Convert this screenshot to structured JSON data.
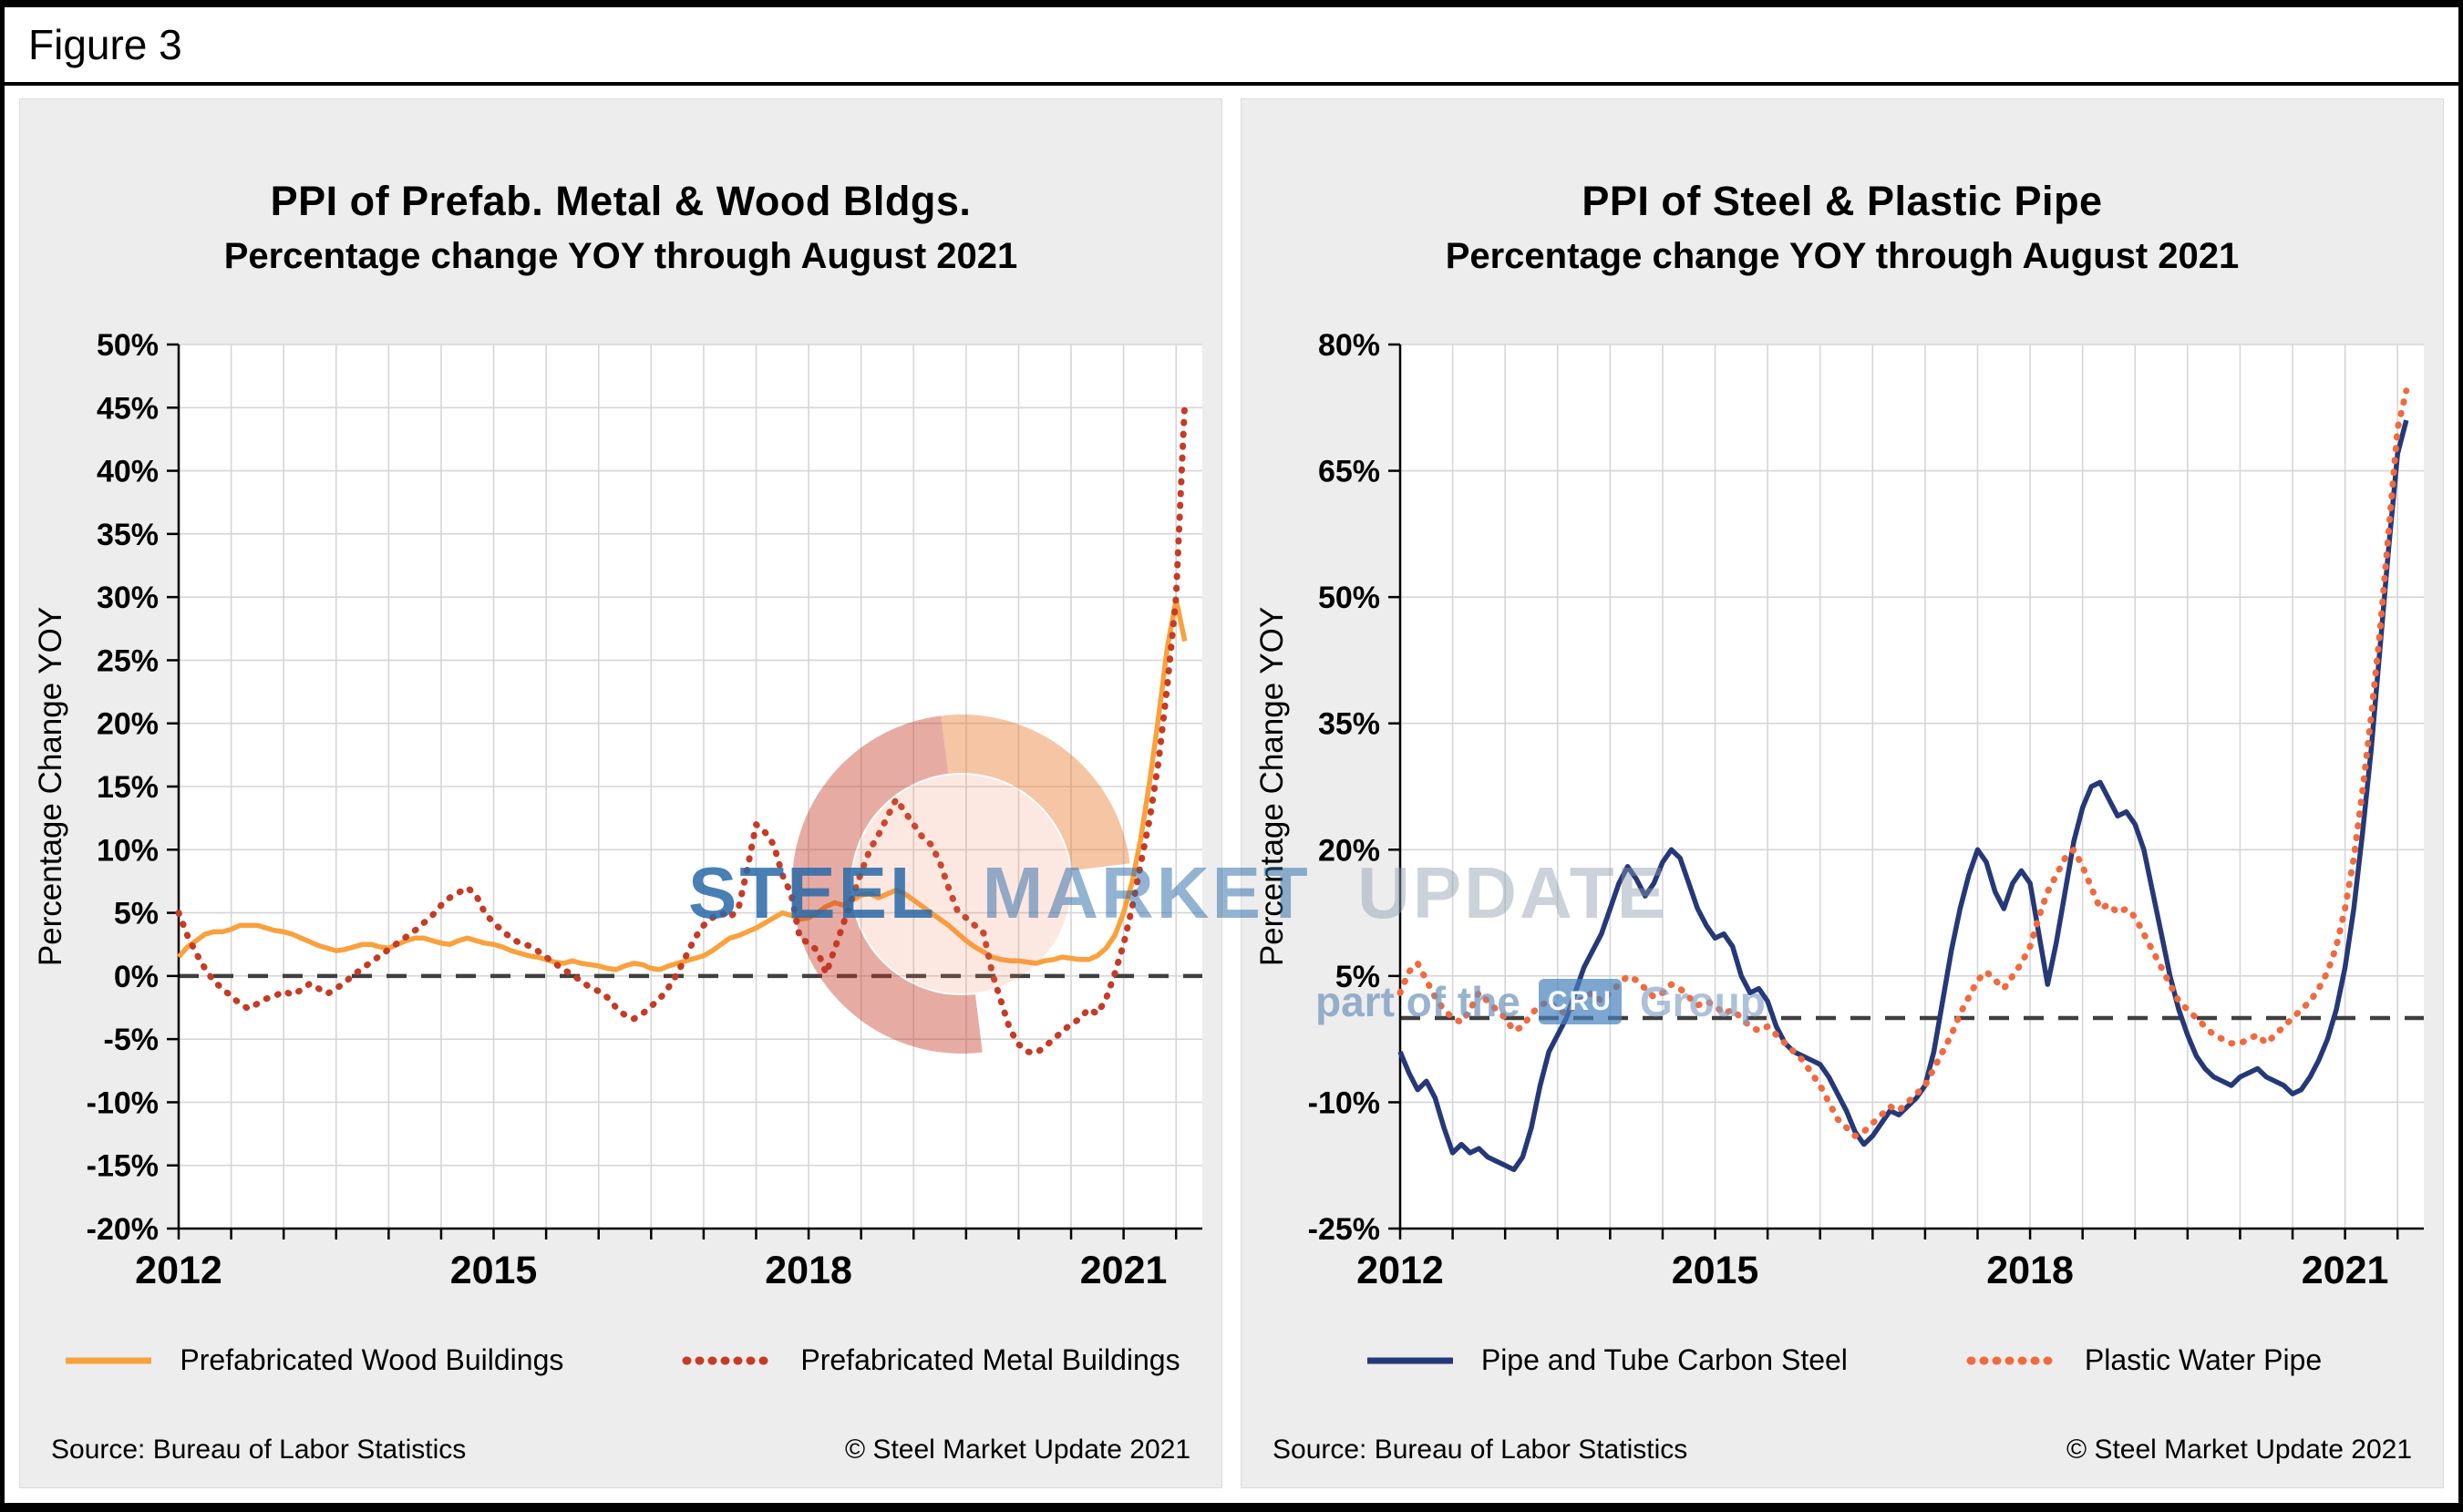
{
  "figure_label": "Figure 3",
  "watermark": {
    "steel": "STEEL",
    "market": "MARKET",
    "update": "UPDATE",
    "tagline_prefix": "part of the",
    "cru": "CRU",
    "group": "Group"
  },
  "chart_data": [
    {
      "type": "line",
      "title": "PPI of Prefab. Metal & Wood Bldgs.",
      "subtitle": "Percentage change YOY through August 2021",
      "ylabel": "Percentage Change YOY",
      "ylim": [
        -20,
        50
      ],
      "ytick_step": 5,
      "ytick_suffix": "%",
      "xtick_labels": [
        "2012",
        "2015",
        "2018",
        "2021"
      ],
      "x_months_start": "2012-01",
      "x_months_end": "2021-08",
      "grid": true,
      "zero_line_dashed": true,
      "legend_position": "bottom",
      "source": "Source: Bureau of Labor Statistics",
      "copyright": "© Steel Market Update 2021",
      "series": [
        {
          "name": "Prefabricated Wood Buildings",
          "color": "#F9A13D",
          "style": "solid",
          "values": [
            1.5,
            2.3,
            2.8,
            3.3,
            3.5,
            3.5,
            3.7,
            4.0,
            4.0,
            4.0,
            3.8,
            3.6,
            3.5,
            3.3,
            3.0,
            2.7,
            2.4,
            2.2,
            2.0,
            2.1,
            2.3,
            2.5,
            2.5,
            2.3,
            2.2,
            2.5,
            2.8,
            3.0,
            3.0,
            2.8,
            2.6,
            2.5,
            2.8,
            3.0,
            2.8,
            2.6,
            2.5,
            2.3,
            2.0,
            1.8,
            1.6,
            1.5,
            1.3,
            1.1,
            1.0,
            1.2,
            1.0,
            0.9,
            0.8,
            0.6,
            0.5,
            0.8,
            1.0,
            0.9,
            0.6,
            0.5,
            0.8,
            1.0,
            1.2,
            1.4,
            1.6,
            2.0,
            2.5,
            3.0,
            3.2,
            3.5,
            3.8,
            4.2,
            4.6,
            5.0,
            4.8,
            4.5,
            4.6,
            5.0,
            5.5,
            5.8,
            5.6,
            6.0,
            6.4,
            6.5,
            6.2,
            6.5,
            6.8,
            6.5,
            6.0,
            5.5,
            5.0,
            4.5,
            4.0,
            3.4,
            2.8,
            2.3,
            1.9,
            1.5,
            1.3,
            1.2,
            1.2,
            1.1,
            1.0,
            1.2,
            1.3,
            1.5,
            1.4,
            1.3,
            1.3,
            1.6,
            2.2,
            3.2,
            5.0,
            7.5,
            11.0,
            15.5,
            20.5,
            26.0,
            29.8,
            26.5
          ]
        },
        {
          "name": "Prefabricated Metal Buildings",
          "color": "#C43B26",
          "style": "dotted",
          "values": [
            5.0,
            3.2,
            1.8,
            0.6,
            -0.4,
            -1.0,
            -1.6,
            -2.2,
            -2.6,
            -2.2,
            -1.8,
            -1.6,
            -1.2,
            -1.5,
            -1.1,
            -0.6,
            -1.0,
            -1.4,
            -1.0,
            -0.5,
            0.1,
            0.6,
            1.1,
            1.6,
            2.1,
            2.6,
            3.1,
            3.6,
            4.2,
            4.8,
            5.6,
            6.2,
            6.6,
            7.0,
            6.4,
            5.0,
            4.2,
            3.6,
            3.0,
            2.6,
            2.4,
            2.0,
            1.5,
            1.0,
            0.5,
            0.1,
            -0.4,
            -0.9,
            -1.2,
            -1.7,
            -2.5,
            -3.1,
            -3.4,
            -3.0,
            -2.4,
            -1.8,
            -0.9,
            0.2,
            1.6,
            3.0,
            4.0,
            4.6,
            5.0,
            4.6,
            5.4,
            8.5,
            12.0,
            11.4,
            10.4,
            8.0,
            6.5,
            3.0,
            2.6,
            2.0,
            0.2,
            2.2,
            4.2,
            6.2,
            8.2,
            10.0,
            11.2,
            12.6,
            14.0,
            13.0,
            12.0,
            11.0,
            10.4,
            9.0,
            7.0,
            5.2,
            4.6,
            4.0,
            3.4,
            0.2,
            -2.0,
            -4.2,
            -5.4,
            -6.0,
            -6.1,
            -5.6,
            -5.0,
            -4.4,
            -3.8,
            -3.4,
            -2.6,
            -3.0,
            -1.8,
            0.2,
            2.5,
            5.5,
            9.0,
            12.5,
            17.0,
            23.0,
            30.0,
            45.5
          ]
        }
      ]
    },
    {
      "type": "line",
      "title": "PPI of Steel & Plastic Pipe",
      "subtitle": "Percentage change YOY through August 2021",
      "ylabel": "Percentage Change YOY",
      "ylim": [
        -25,
        80
      ],
      "ytick_step": 15,
      "ytick_suffix": "%",
      "xtick_labels": [
        "2012",
        "2015",
        "2018",
        "2021"
      ],
      "x_months_start": "2012-01",
      "x_months_end": "2021-08",
      "grid": true,
      "zero_line_dashed": true,
      "legend_position": "bottom",
      "source": "Source: Bureau of Labor Statistics",
      "copyright": "© Steel Market Update 2021",
      "series": [
        {
          "name": "Pipe and Tube Carbon Steel",
          "color": "#253878",
          "style": "solid",
          "values": [
            -4.0,
            -6.5,
            -8.5,
            -7.5,
            -9.5,
            -13.0,
            -16.0,
            -15.0,
            -16.0,
            -15.5,
            -16.5,
            -17.0,
            -17.5,
            -18.0,
            -16.5,
            -13.0,
            -8.0,
            -4.0,
            -2.0,
            0.0,
            3.0,
            6.0,
            8.0,
            10.0,
            13.0,
            16.0,
            18.0,
            16.5,
            14.5,
            16.0,
            18.5,
            20.0,
            19.0,
            16.0,
            13.0,
            11.0,
            9.5,
            10.0,
            8.5,
            5.0,
            3.0,
            3.5,
            2.0,
            -1.0,
            -3.0,
            -4.0,
            -4.5,
            -5.0,
            -5.5,
            -7.0,
            -9.0,
            -11.0,
            -13.5,
            -15.0,
            -14.0,
            -12.5,
            -11.0,
            -11.5,
            -10.5,
            -9.5,
            -8.0,
            -4.0,
            2.0,
            8.0,
            13.0,
            17.0,
            20.0,
            18.5,
            15.0,
            13.0,
            16.0,
            17.5,
            16.0,
            10.0,
            4.0,
            9.0,
            15.0,
            21.0,
            25.0,
            27.5,
            28.0,
            26.0,
            24.0,
            24.5,
            23.0,
            20.0,
            15.0,
            10.0,
            5.0,
            1.0,
            -2.0,
            -4.5,
            -6.0,
            -7.0,
            -7.5,
            -8.0,
            -7.0,
            -6.5,
            -6.0,
            -7.0,
            -7.5,
            -8.0,
            -9.0,
            -8.5,
            -7.0,
            -5.0,
            -2.5,
            1.0,
            6.0,
            13.0,
            22.0,
            32.0,
            44.0,
            56.0,
            67.0,
            71.0
          ]
        },
        {
          "name": "Plastic Water Pipe",
          "color": "#F06A3F",
          "style": "dotted",
          "values": [
            3.0,
            5.5,
            6.5,
            4.5,
            2.5,
            1.0,
            0.0,
            -0.5,
            1.0,
            3.0,
            2.0,
            1.0,
            0.0,
            -1.5,
            -1.0,
            0.5,
            1.5,
            2.0,
            1.0,
            0.5,
            1.5,
            2.5,
            3.0,
            2.0,
            3.0,
            4.0,
            5.0,
            4.5,
            3.5,
            2.5,
            3.0,
            4.0,
            3.5,
            2.5,
            1.5,
            2.0,
            1.5,
            0.5,
            1.0,
            0.0,
            -1.0,
            -1.5,
            -1.0,
            -2.0,
            -3.0,
            -4.0,
            -5.0,
            -6.5,
            -8.0,
            -10.0,
            -12.0,
            -13.0,
            -14.0,
            -13.5,
            -12.5,
            -11.5,
            -10.5,
            -11.0,
            -10.0,
            -9.0,
            -8.0,
            -6.0,
            -4.0,
            -2.0,
            0.5,
            2.5,
            4.5,
            5.5,
            4.5,
            3.5,
            5.0,
            6.5,
            8.5,
            12.0,
            15.0,
            17.0,
            19.0,
            20.0,
            18.0,
            15.5,
            13.0,
            13.5,
            12.5,
            13.0,
            12.0,
            10.0,
            8.0,
            6.0,
            4.0,
            2.0,
            1.0,
            0.0,
            -1.0,
            -2.0,
            -2.5,
            -3.0,
            -3.0,
            -2.5,
            -2.0,
            -3.0,
            -2.0,
            -1.0,
            0.0,
            1.0,
            2.0,
            3.5,
            5.5,
            8.5,
            13.0,
            19.0,
            27.0,
            36.0,
            46.0,
            58.0,
            70.0,
            74.5
          ]
        }
      ]
    }
  ],
  "style_colors": {
    "grid": "#D6D6D6",
    "zero_line": "#3F3F3F",
    "panel_background": "#EDEDED",
    "plot_background": "#FFFFFF"
  }
}
